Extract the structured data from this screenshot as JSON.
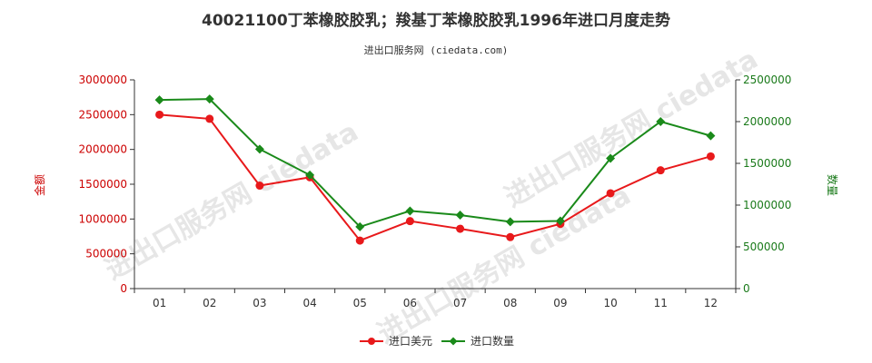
{
  "title": "40021100丁苯橡胶胶乳；羧基丁苯橡胶胶乳1996年进口月度走势",
  "subtitle": "进出口服务网 (ciedata.com)",
  "watermark": "进出口服务网 ciedata",
  "colors": {
    "amount": "#e8191b",
    "quantity": "#1a8a1a",
    "axis_left": "#cc0000",
    "axis_right": "#1a7a1a"
  },
  "chart_data": {
    "type": "line",
    "categories": [
      "01",
      "02",
      "03",
      "04",
      "05",
      "06",
      "07",
      "08",
      "09",
      "10",
      "11",
      "12"
    ],
    "y_left": {
      "label": "金额",
      "ylim": [
        0,
        3000000
      ],
      "ticks": [
        "0",
        "500000",
        "1000000",
        "1500000",
        "2000000",
        "2500000",
        "3000000"
      ]
    },
    "y_right": {
      "label": "数量",
      "ylim": [
        0,
        2500000
      ],
      "ticks": [
        "0",
        "500000",
        "1000000",
        "1500000",
        "2000000",
        "2500000"
      ]
    },
    "series": [
      {
        "name": "进口美元",
        "axis": "left",
        "values": [
          2500000,
          2440000,
          1480000,
          1600000,
          690000,
          970000,
          860000,
          740000,
          930000,
          1370000,
          1700000,
          1900000
        ]
      },
      {
        "name": "进口数量",
        "axis": "right",
        "values": [
          2260000,
          2270000,
          1670000,
          1360000,
          740000,
          930000,
          880000,
          800000,
          810000,
          1560000,
          2000000,
          1830000
        ]
      }
    ],
    "legend_position": "bottom-center",
    "grid": false
  }
}
